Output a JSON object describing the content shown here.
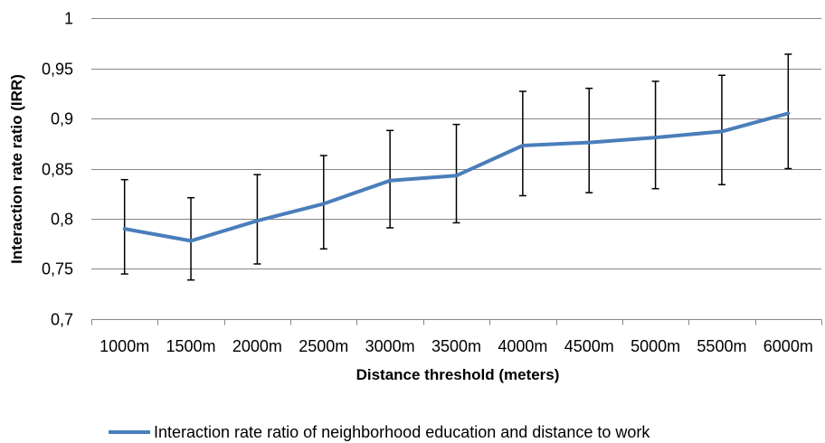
{
  "chart_data": {
    "type": "line",
    "title": "",
    "xlabel": "Distance threshold (meters)",
    "ylabel": "Interaction rate ratio (IRR)",
    "categories": [
      "1000m",
      "1500m",
      "2000m",
      "2500m",
      "3000m",
      "3500m",
      "4000m",
      "4500m",
      "5000m",
      "5500m",
      "6000m"
    ],
    "series": [
      {
        "name": "Interaction rate ratio of neighborhood education and distance to work",
        "color": "#4a7ebb",
        "values": [
          0.79,
          0.778,
          0.798,
          0.815,
          0.838,
          0.843,
          0.873,
          0.876,
          0.881,
          0.887,
          0.905
        ],
        "error_low": [
          0.745,
          0.739,
          0.755,
          0.77,
          0.791,
          0.796,
          0.823,
          0.826,
          0.83,
          0.834,
          0.85
        ],
        "error_high": [
          0.839,
          0.821,
          0.844,
          0.863,
          0.888,
          0.894,
          0.927,
          0.93,
          0.937,
          0.943,
          0.964
        ]
      }
    ],
    "ylim": [
      0.7,
      1.0
    ],
    "yticks": [
      0.7,
      0.75,
      0.8,
      0.85,
      0.9,
      0.95,
      1.0
    ],
    "ytick_labels": [
      "0,7",
      "0,75",
      "0,8",
      "0,85",
      "0,9",
      "0,95",
      "1"
    ],
    "grid": true,
    "legend_position": "bottom"
  }
}
